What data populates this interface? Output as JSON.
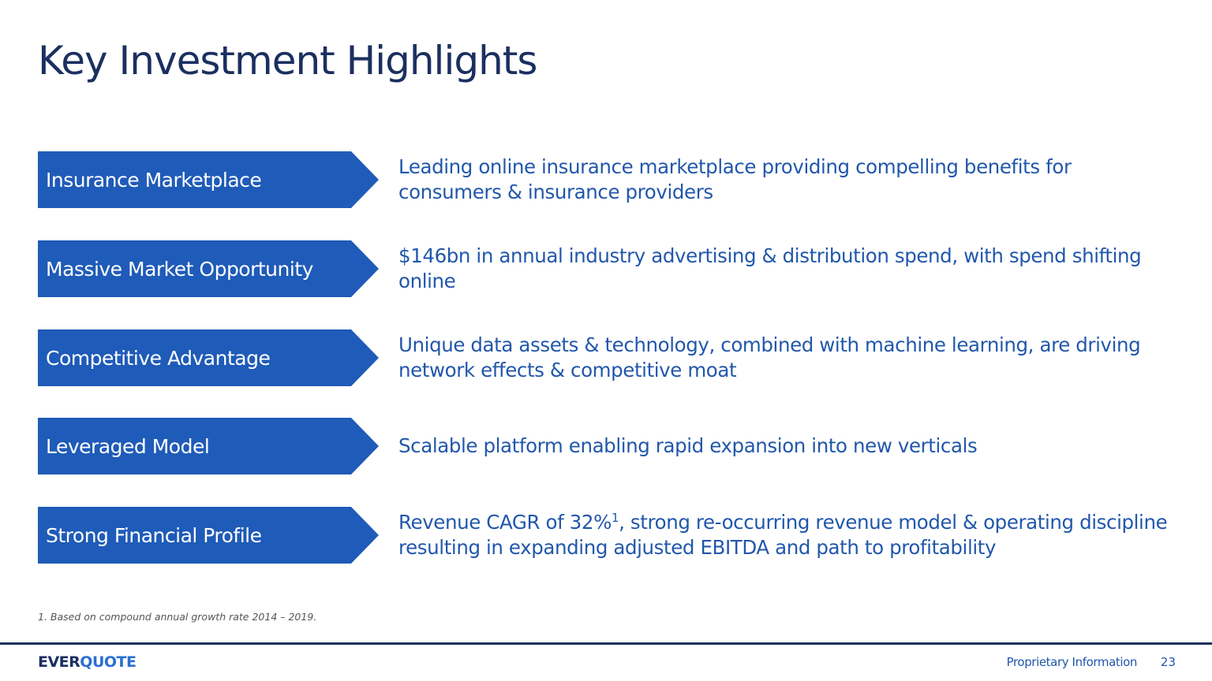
{
  "title": "Key Investment Highlights",
  "highlights": [
    {
      "label": "Insurance Marketplace",
      "text": "Leading online insurance marketplace providing compelling benefits for consumers & insurance providers"
    },
    {
      "label": "Massive Market Opportunity",
      "text": "$146bn in annual industry advertising & distribution spend, with spend shifting online"
    },
    {
      "label": "Competitive Advantage",
      "text": "Unique data assets & technology, combined with machine learning, are driving network effects & competitive moat"
    },
    {
      "label": "Leveraged Model",
      "text": "Scalable platform enabling rapid expansion into new verticals"
    },
    {
      "label": "Strong Financial Profile",
      "text": "Revenue CAGR of 32%",
      "footnote_mark": "1",
      "text_continued": ", strong re-occurring revenue model & operating discipline resulting in expanding adjusted EBITDA and path to profitability"
    }
  ],
  "footnote": "1. Based on compound annual growth rate 2014 – 2019.",
  "footer": {
    "logo": [
      "EVER",
      "QUOTE"
    ],
    "label": "Proprietary Information",
    "page": "23"
  }
}
